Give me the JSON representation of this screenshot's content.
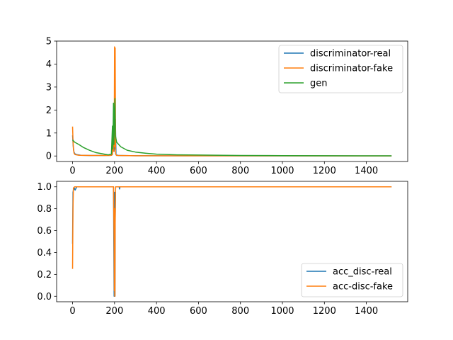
{
  "chart_data": [
    {
      "type": "line",
      "xlim": [
        -76,
        1597
      ],
      "ylim": [
        -0.24,
        5.0
      ],
      "xticks": [
        0,
        200,
        400,
        600,
        800,
        1000,
        1200,
        1400
      ],
      "yticks": [
        0,
        1,
        2,
        3,
        4,
        5
      ],
      "tick_labels_x": [
        "0",
        "200",
        "400",
        "600",
        "800",
        "1000",
        "1200",
        "1400"
      ],
      "tick_labels_y": [
        "0",
        "1",
        "2",
        "3",
        "4",
        "5"
      ],
      "legend_position": "top-right",
      "grid": false,
      "series": [
        {
          "name": "discriminator-real",
          "color": "#1f77b4",
          "points": [
            [
              0,
              0.9
            ],
            [
              3,
              0.45
            ],
            [
              6,
              0.2
            ],
            [
              10,
              0.1
            ],
            [
              20,
              0.06
            ],
            [
              40,
              0.03
            ],
            [
              80,
              0.02
            ],
            [
              150,
              0.02
            ],
            [
              185,
              0.03
            ],
            [
              192,
              0.5
            ],
            [
              195,
              1.3
            ],
            [
              198,
              0.2
            ],
            [
              200,
              2.3
            ],
            [
              202,
              0.3
            ],
            [
              204,
              1.6
            ],
            [
              207,
              0.05
            ],
            [
              220,
              0.02
            ],
            [
              300,
              0.01
            ],
            [
              600,
              0.01
            ],
            [
              1000,
              0.005
            ],
            [
              1520,
              0.003
            ]
          ]
        },
        {
          "name": "discriminator-fake",
          "color": "#ff7f0e",
          "points": [
            [
              0,
              1.28
            ],
            [
              2,
              0.7
            ],
            [
              4,
              0.3
            ],
            [
              7,
              0.12
            ],
            [
              12,
              0.06
            ],
            [
              30,
              0.03
            ],
            [
              100,
              0.02
            ],
            [
              180,
              0.02
            ],
            [
              190,
              0.05
            ],
            [
              194,
              1.0
            ],
            [
              196,
              0.2
            ],
            [
              199,
              2.2
            ],
            [
              200,
              4.75
            ],
            [
              201,
              0.4
            ],
            [
              203,
              4.7
            ],
            [
              205,
              0.1
            ],
            [
              210,
              0.02
            ],
            [
              300,
              0.01
            ],
            [
              1000,
              0.005
            ],
            [
              1520,
              0.003
            ]
          ]
        },
        {
          "name": "gen",
          "color": "#2ca02c",
          "points": [
            [
              0,
              0.7
            ],
            [
              10,
              0.6
            ],
            [
              30,
              0.5
            ],
            [
              50,
              0.38
            ],
            [
              80,
              0.25
            ],
            [
              110,
              0.15
            ],
            [
              140,
              0.1
            ],
            [
              170,
              0.05
            ],
            [
              185,
              0.08
            ],
            [
              190,
              1.3
            ],
            [
              192,
              0.3
            ],
            [
              195,
              2.3
            ],
            [
              197,
              0.5
            ],
            [
              200,
              2.0
            ],
            [
              202,
              2.5
            ],
            [
              204,
              0.9
            ],
            [
              210,
              0.6
            ],
            [
              230,
              0.4
            ],
            [
              260,
              0.25
            ],
            [
              300,
              0.17
            ],
            [
              350,
              0.12
            ],
            [
              400,
              0.08
            ],
            [
              500,
              0.05
            ],
            [
              600,
              0.04
            ],
            [
              800,
              0.02
            ],
            [
              1000,
              0.015
            ],
            [
              1200,
              0.01
            ],
            [
              1520,
              0.005
            ]
          ]
        }
      ]
    },
    {
      "type": "line",
      "xlim": [
        -76,
        1597
      ],
      "ylim": [
        -0.05,
        1.05
      ],
      "xticks": [
        0,
        200,
        400,
        600,
        800,
        1000,
        1200,
        1400
      ],
      "yticks": [
        0.0,
        0.2,
        0.4,
        0.6,
        0.8,
        1.0
      ],
      "tick_labels_x": [
        "0",
        "200",
        "400",
        "600",
        "800",
        "1000",
        "1200",
        "1400"
      ],
      "tick_labels_y": [
        "0.0",
        "0.2",
        "0.4",
        "0.6",
        "0.8",
        "1.0"
      ],
      "legend_position": "lower-right",
      "grid": false,
      "series": [
        {
          "name": "acc_disc-real",
          "color": "#1f77b4",
          "points": [
            [
              0,
              0.48
            ],
            [
              2,
              0.95
            ],
            [
              4,
              0.97
            ],
            [
              8,
              0.99
            ],
            [
              12,
              0.97
            ],
            [
              20,
              1.0
            ],
            [
              195,
              1.0
            ],
            [
              198,
              0.0
            ],
            [
              199,
              0.3
            ],
            [
              200,
              0.95
            ],
            [
              201,
              0.0
            ],
            [
              202,
              0.0
            ],
            [
              203,
              0.7
            ],
            [
              205,
              1.0
            ],
            [
              222,
              1.0
            ],
            [
              224,
              0.98
            ],
            [
              226,
              1.0
            ],
            [
              1520,
              1.0
            ]
          ]
        },
        {
          "name": "acc-disc-fake",
          "color": "#ff7f0e",
          "points": [
            [
              0,
              0.25
            ],
            [
              2,
              0.8
            ],
            [
              4,
              0.99
            ],
            [
              10,
              1.0
            ],
            [
              195,
              1.0
            ],
            [
              198,
              0.5
            ],
            [
              199,
              0.05
            ],
            [
              200,
              0.8
            ],
            [
              201,
              0.0
            ],
            [
              202,
              0.0
            ],
            [
              203,
              0.65
            ],
            [
              205,
              1.0
            ],
            [
              1520,
              1.0
            ]
          ]
        }
      ]
    }
  ]
}
